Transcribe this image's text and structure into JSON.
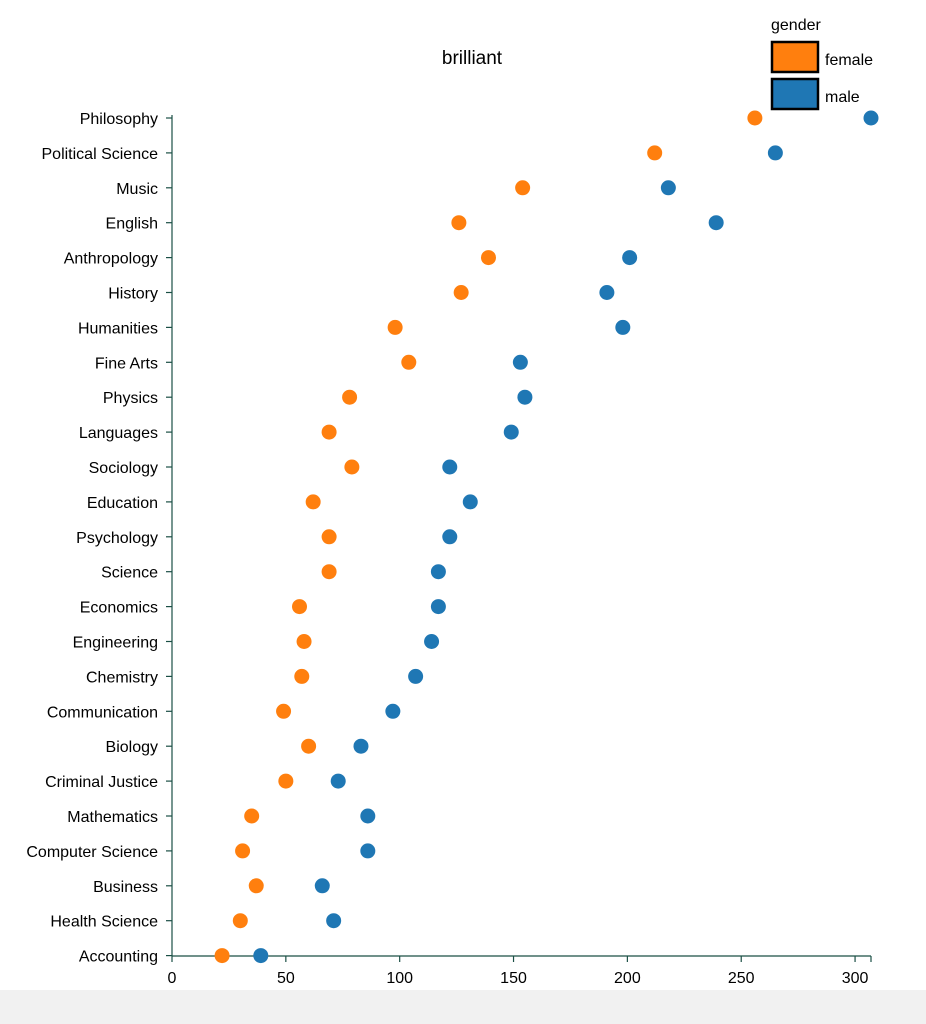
{
  "chart_data": {
    "type": "scatter",
    "title": "brilliant",
    "xlabel": "",
    "ylabel": "",
    "xlim": [
      0,
      307
    ],
    "xticks": [
      0,
      50,
      100,
      150,
      200,
      250,
      300
    ],
    "legend": {
      "title": "gender",
      "placement": "top-right",
      "entries": [
        {
          "name": "female",
          "color": "#ff7f0e"
        },
        {
          "name": "male",
          "color": "#1f77b4"
        }
      ]
    },
    "grid": false,
    "categories": [
      "Philosophy",
      "Political Science",
      "Music",
      "English",
      "Anthropology",
      "History",
      "Humanities",
      "Fine Arts",
      "Physics",
      "Languages",
      "Sociology",
      "Education",
      "Psychology",
      "Science",
      "Economics",
      "Engineering",
      "Chemistry",
      "Communication",
      "Biology",
      "Criminal Justice",
      "Mathematics",
      "Computer Science",
      "Business",
      "Health Science",
      "Accounting"
    ],
    "series": [
      {
        "name": "female",
        "color": "#ff7f0e",
        "values": [
          256,
          212,
          154,
          126,
          139,
          127,
          98,
          104,
          78,
          69,
          79,
          62,
          69,
          69,
          56,
          58,
          57,
          49,
          60,
          50,
          35,
          31,
          37,
          30,
          22
        ]
      },
      {
        "name": "male",
        "color": "#1f77b4",
        "values": [
          307,
          265,
          218,
          239,
          201,
          191,
          198,
          153,
          155,
          149,
          122,
          131,
          122,
          117,
          117,
          114,
          107,
          97,
          83,
          73,
          86,
          86,
          66,
          71,
          39
        ]
      }
    ]
  }
}
